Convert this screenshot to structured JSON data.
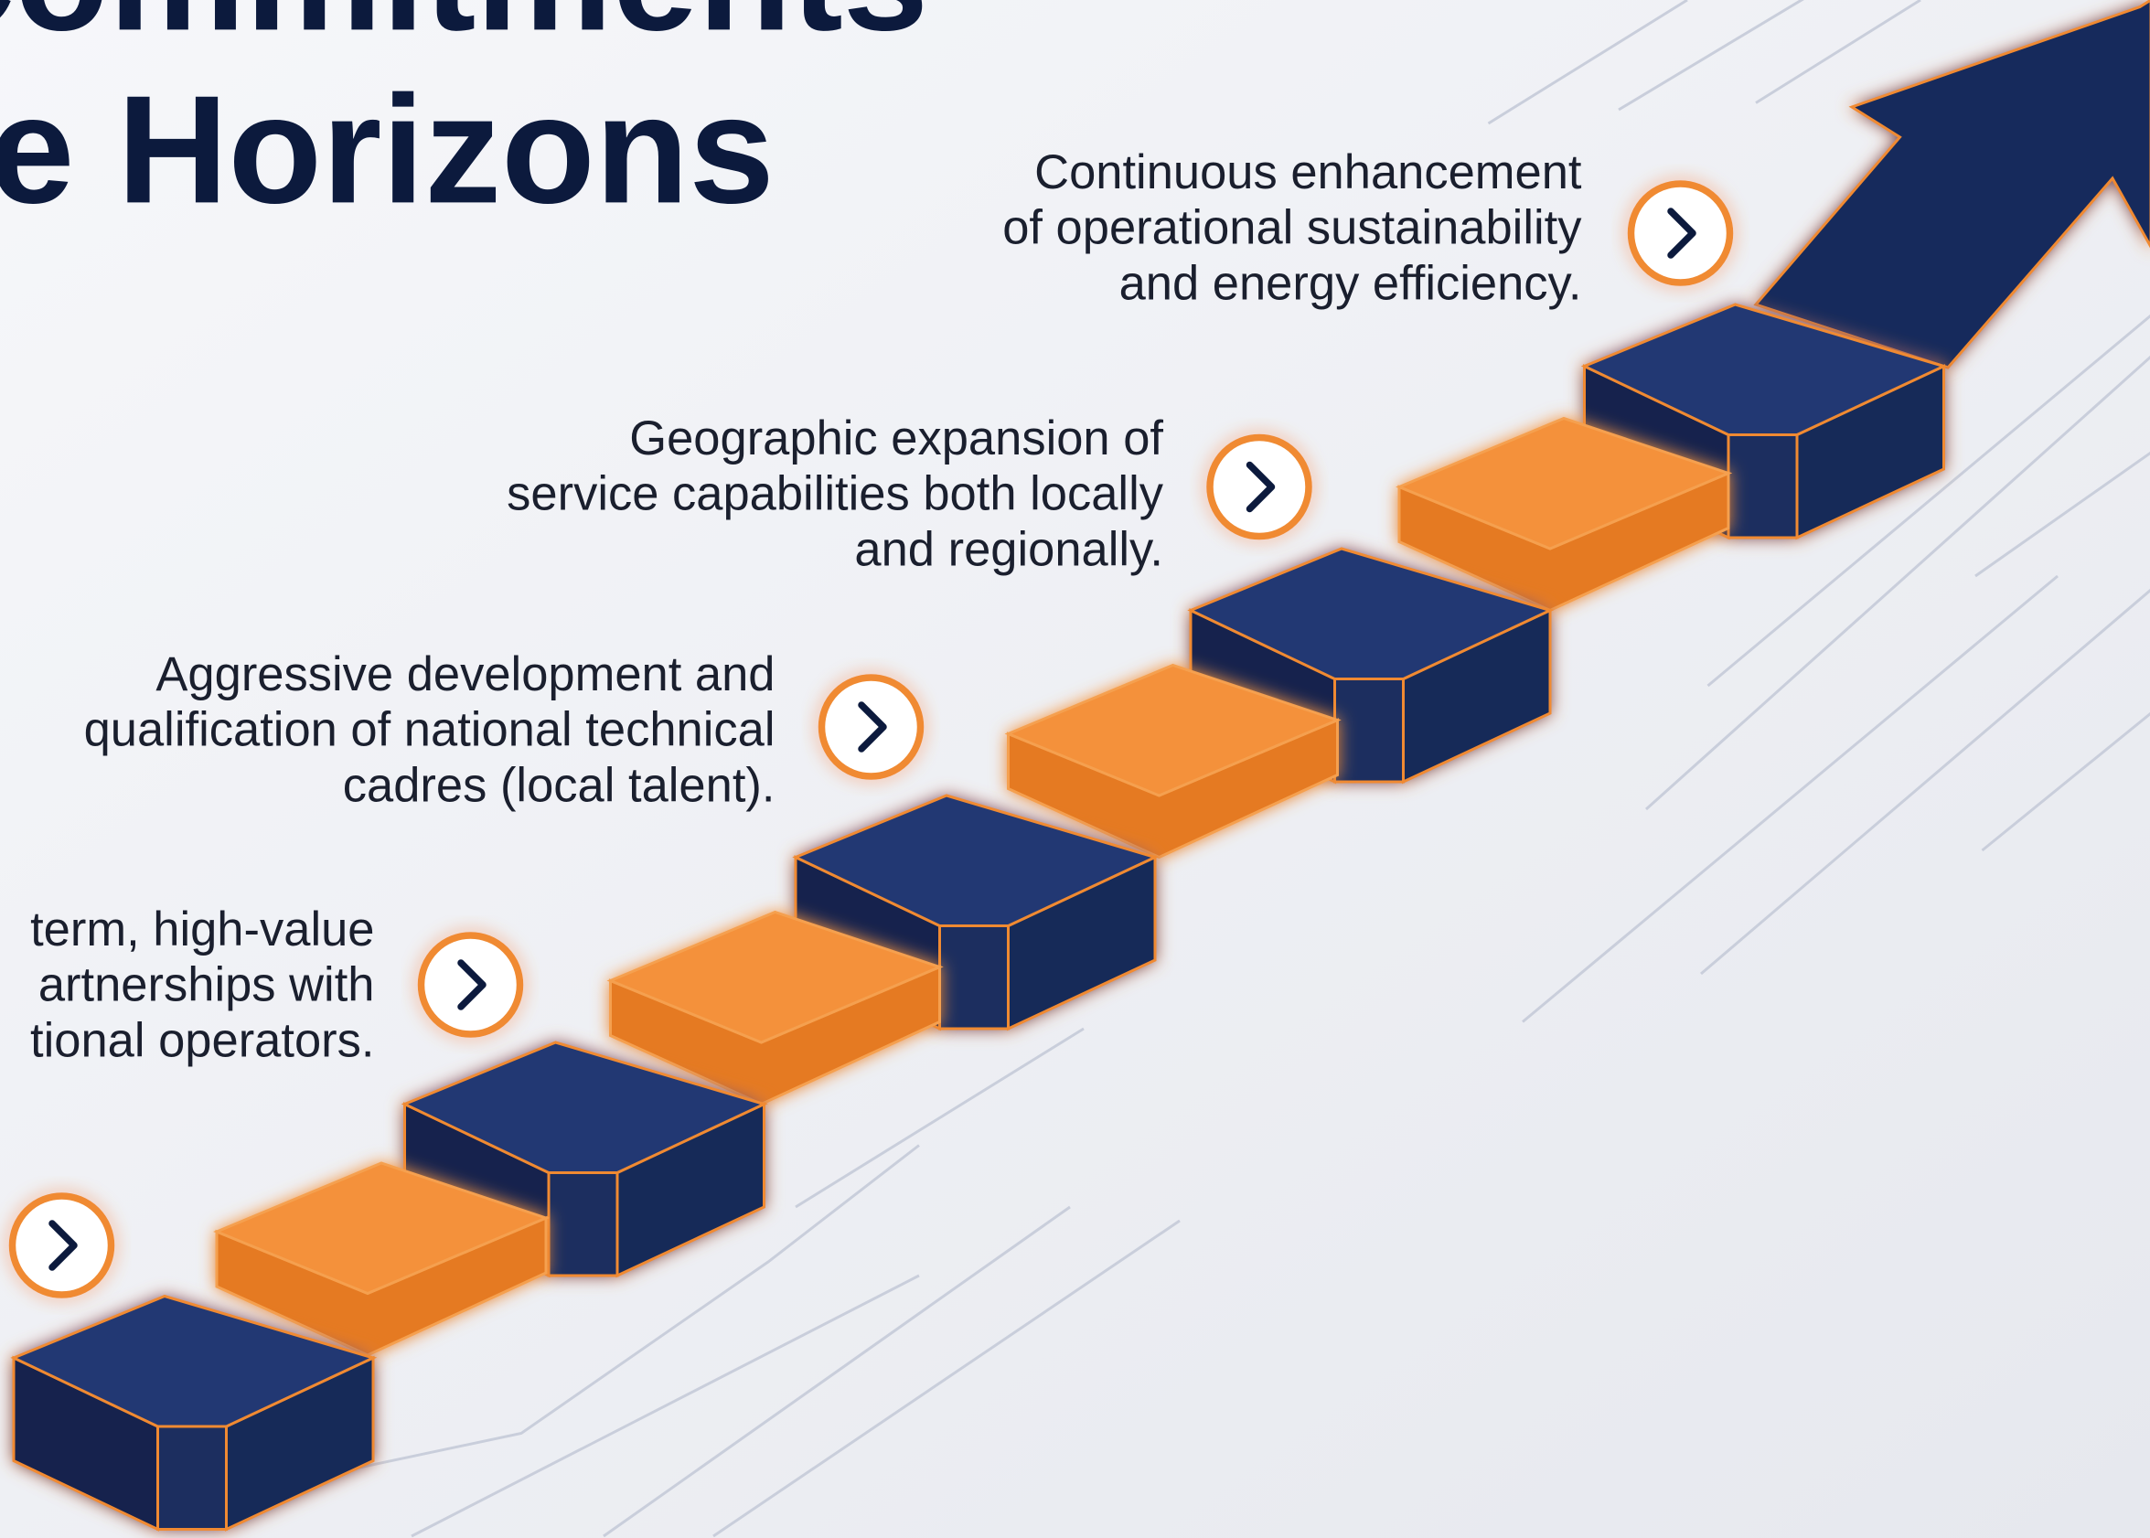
{
  "title": {
    "lines": [
      "Commitments",
      "e Horizons"
    ]
  },
  "items": [
    {
      "lines": [
        "Continuous enhancement",
        "of operational sustainability",
        "and energy efficiency."
      ]
    },
    {
      "lines": [
        "Geographic expansion of",
        "service capabilities both locally",
        "and regionally."
      ]
    },
    {
      "lines": [
        "Aggressive development and",
        "qualification of national technical",
        "cadres (local talent)."
      ]
    },
    {
      "lines": [
        "term, high-value",
        "artnerships with",
        "tional operators."
      ]
    }
  ]
}
